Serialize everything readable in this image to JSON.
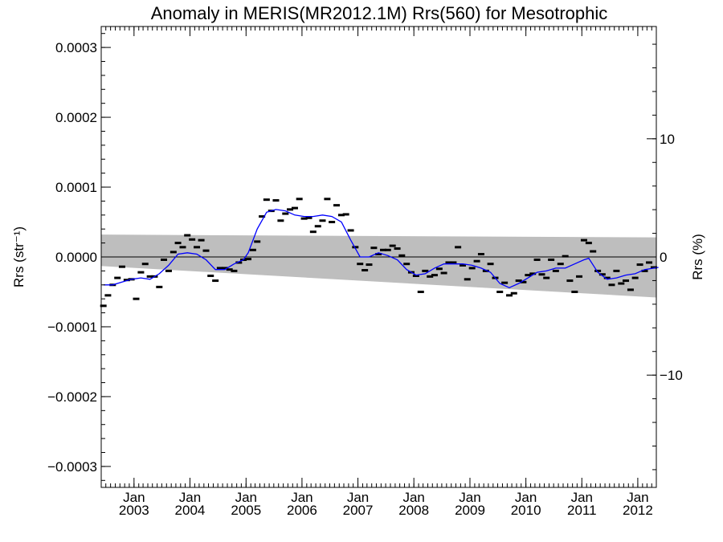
{
  "chart_data": {
    "type": "scatter",
    "title": "Anomaly in MERIS(MR2012.1M) Rrs(560) for Mesotrophic",
    "ylabel_left": "Rrs (str⁻¹)",
    "ylabel_right": "Rrs (%)",
    "x_range": [
      "2002-06-01",
      "2012-05-01"
    ],
    "y_range": [
      -0.00033,
      0.00033
    ],
    "y_right_range": [
      -19.5,
      19.5
    ],
    "x_ticks": [
      {
        "date": "2003-01-01",
        "month": "Jan",
        "year": "2003"
      },
      {
        "date": "2004-01-01",
        "month": "Jan",
        "year": "2004"
      },
      {
        "date": "2005-01-01",
        "month": "Jan",
        "year": "2005"
      },
      {
        "date": "2006-01-01",
        "month": "Jan",
        "year": "2006"
      },
      {
        "date": "2007-01-01",
        "month": "Jan",
        "year": "2007"
      },
      {
        "date": "2008-01-01",
        "month": "Jan",
        "year": "2008"
      },
      {
        "date": "2009-01-01",
        "month": "Jan",
        "year": "2009"
      },
      {
        "date": "2010-01-01",
        "month": "Jan",
        "year": "2010"
      },
      {
        "date": "2011-01-01",
        "month": "Jan",
        "year": "2011"
      },
      {
        "date": "2012-01-01",
        "month": "Jan",
        "year": "2012"
      }
    ],
    "y_ticks_left": [
      {
        "value": 0.0003,
        "label": "0.0003"
      },
      {
        "value": 0.0002,
        "label": "0.0002"
      },
      {
        "value": 0.0001,
        "label": "0.0001"
      },
      {
        "value": 0.0,
        "label": "0.0000"
      },
      {
        "value": -0.0001,
        "label": "−0.0001"
      },
      {
        "value": -0.0002,
        "label": "−0.0002"
      },
      {
        "value": -0.0003,
        "label": "−0.0003"
      }
    ],
    "y_ticks_right": [
      {
        "value": 10,
        "label": "10"
      },
      {
        "value": 0,
        "label": "0"
      },
      {
        "value": -10,
        "label": "−10"
      }
    ],
    "zero_line": 0.0,
    "uncertainty_band": {
      "color": "#bebebe",
      "upper": [
        [
          "2002-06-01",
          3.2e-05
        ],
        [
          "2012-05-01",
          2.8e-05
        ]
      ],
      "lower": [
        [
          "2002-06-01",
          -1.3e-05
        ],
        [
          "2012-05-01",
          -5.8e-05
        ]
      ]
    },
    "monthly_anomalies": {
      "color": "#000000",
      "points": [
        [
          "2002-06",
          -7e-05
        ],
        [
          "2002-07",
          -5.5e-05
        ],
        [
          "2002-08",
          -4e-05
        ],
        [
          "2002-09",
          -3e-05
        ],
        [
          "2002-10",
          -1.4e-05
        ],
        [
          "2002-11",
          -3.3e-05
        ],
        [
          "2002-12",
          -3.2e-05
        ],
        [
          "2003-01",
          -6e-05
        ],
        [
          "2003-02",
          -2.2e-05
        ],
        [
          "2003-03",
          -1e-05
        ],
        [
          "2003-04",
          -2.8e-05
        ],
        [
          "2003-05",
          -2.8e-05
        ],
        [
          "2003-06",
          -4.3e-05
        ],
        [
          "2003-07",
          -4e-06
        ],
        [
          "2003-08",
          -2e-05
        ],
        [
          "2003-09",
          7e-06
        ],
        [
          "2003-10",
          2e-05
        ],
        [
          "2003-11",
          1.4e-05
        ],
        [
          "2003-12",
          3.1e-05
        ],
        [
          "2004-01",
          2.5e-05
        ],
        [
          "2004-02",
          1.4e-05
        ],
        [
          "2004-03",
          2.4e-05
        ],
        [
          "2004-04",
          9e-06
        ],
        [
          "2004-05",
          -2.7e-05
        ],
        [
          "2004-06",
          -3.4e-05
        ],
        [
          "2004-07",
          -1.6e-05
        ],
        [
          "2004-08",
          -1.6e-05
        ],
        [
          "2004-09",
          -1.8e-05
        ],
        [
          "2004-10",
          -2e-05
        ],
        [
          "2004-11",
          -8e-06
        ],
        [
          "2004-12",
          -4e-06
        ],
        [
          "2005-01",
          -3e-06
        ],
        [
          "2005-02",
          1e-05
        ],
        [
          "2005-03",
          2.2e-05
        ],
        [
          "2005-04",
          5.8e-05
        ],
        [
          "2005-05",
          8.2e-05
        ],
        [
          "2005-06",
          6.6e-05
        ],
        [
          "2005-07",
          8.1e-05
        ],
        [
          "2005-08",
          5.2e-05
        ],
        [
          "2005-09",
          6.2e-05
        ],
        [
          "2005-10",
          6.8e-05
        ],
        [
          "2005-11",
          7e-05
        ],
        [
          "2005-12",
          8.3e-05
        ],
        [
          "2006-01",
          5.5e-05
        ],
        [
          "2006-02",
          5.6e-05
        ],
        [
          "2006-03",
          3.6e-05
        ],
        [
          "2006-04",
          4.4e-05
        ],
        [
          "2006-05",
          5.2e-05
        ],
        [
          "2006-06",
          8.3e-05
        ],
        [
          "2006-07",
          5e-05
        ],
        [
          "2006-08",
          7.4e-05
        ],
        [
          "2006-09",
          6e-05
        ],
        [
          "2006-10",
          6.1e-05
        ],
        [
          "2006-11",
          3.8e-05
        ],
        [
          "2006-12",
          1.4e-05
        ],
        [
          "2007-01",
          -1e-05
        ],
        [
          "2007-02",
          -1.9e-05
        ],
        [
          "2007-03",
          -1.1e-05
        ],
        [
          "2007-04",
          1.3e-05
        ],
        [
          "2007-05",
          4e-06
        ],
        [
          "2007-06",
          1e-05
        ],
        [
          "2007-07",
          1e-05
        ],
        [
          "2007-08",
          1.6e-05
        ],
        [
          "2007-09",
          1.2e-05
        ],
        [
          "2007-10",
          2e-06
        ],
        [
          "2007-11",
          -1e-05
        ],
        [
          "2007-12",
          -2.2e-05
        ],
        [
          "2008-01",
          -2.7e-05
        ],
        [
          "2008-02",
          -5e-05
        ],
        [
          "2008-03",
          -2e-05
        ],
        [
          "2008-04",
          -2.8e-05
        ],
        [
          "2008-05",
          -2.6e-05
        ],
        [
          "2008-06",
          -1.7e-05
        ],
        [
          "2008-07",
          -2.3e-05
        ],
        [
          "2008-08",
          -8e-06
        ],
        [
          "2008-09",
          -8e-06
        ],
        [
          "2008-10",
          1.4e-05
        ],
        [
          "2008-11",
          -1.2e-05
        ],
        [
          "2008-12",
          -3.2e-05
        ],
        [
          "2009-01",
          -1.6e-05
        ],
        [
          "2009-02",
          -6e-06
        ],
        [
          "2009-03",
          4e-06
        ],
        [
          "2009-04",
          -2e-05
        ],
        [
          "2009-05",
          -1e-05
        ],
        [
          "2009-06",
          -3e-05
        ],
        [
          "2009-07",
          -5e-05
        ],
        [
          "2009-08",
          -3.7e-05
        ],
        [
          "2009-09",
          -5.5e-05
        ],
        [
          "2009-10",
          -5.2e-05
        ],
        [
          "2009-11",
          -3.4e-05
        ],
        [
          "2009-12",
          -3.6e-05
        ],
        [
          "2010-01",
          -2.6e-05
        ],
        [
          "2010-02",
          -2.4e-05
        ],
        [
          "2010-03",
          -4e-06
        ],
        [
          "2010-04",
          -2.5e-05
        ],
        [
          "2010-05",
          -3e-05
        ],
        [
          "2010-06",
          -4e-06
        ],
        [
          "2010-07",
          -2e-05
        ],
        [
          "2010-08",
          -1e-05
        ],
        [
          "2010-09",
          1e-06
        ],
        [
          "2010-10",
          -3.4e-05
        ],
        [
          "2010-11",
          -5e-05
        ],
        [
          "2010-12",
          -2.8e-05
        ],
        [
          "2011-01",
          2.4e-05
        ],
        [
          "2011-02",
          2e-05
        ],
        [
          "2011-03",
          8e-06
        ],
        [
          "2011-04",
          -2e-05
        ],
        [
          "2011-05",
          -2.5e-05
        ],
        [
          "2011-06",
          -3e-05
        ],
        [
          "2011-07",
          -4e-05
        ],
        [
          "2011-08",
          -2e-05
        ],
        [
          "2011-09",
          -3.8e-05
        ],
        [
          "2011-10",
          -3.4e-05
        ],
        [
          "2011-11",
          -4.7e-05
        ],
        [
          "2011-12",
          -3e-05
        ],
        [
          "2012-01",
          -1.1e-05
        ],
        [
          "2012-02",
          -2e-05
        ],
        [
          "2012-03",
          -8e-06
        ],
        [
          "2012-04",
          -1.5e-05
        ]
      ]
    },
    "running_mean": {
      "color": "#0000ff",
      "points": [
        [
          "2002-06",
          -4e-05
        ],
        [
          "2002-08",
          -4e-05
        ],
        [
          "2002-10",
          -3.6e-05
        ],
        [
          "2002-12",
          -3.2e-05
        ],
        [
          "2003-02",
          -3e-05
        ],
        [
          "2003-04",
          -3.2e-05
        ],
        [
          "2003-06",
          -2.4e-05
        ],
        [
          "2003-08",
          -1.2e-05
        ],
        [
          "2003-10",
          4e-06
        ],
        [
          "2003-12",
          6e-06
        ],
        [
          "2004-02",
          4e-06
        ],
        [
          "2004-04",
          -4e-06
        ],
        [
          "2004-06",
          -1.8e-05
        ],
        [
          "2004-08",
          -1.8e-05
        ],
        [
          "2004-10",
          -1e-05
        ],
        [
          "2004-12",
          -4e-06
        ],
        [
          "2005-01",
          6e-06
        ],
        [
          "2005-03",
          4e-05
        ],
        [
          "2005-05",
          6.4e-05
        ],
        [
          "2005-07",
          6.8e-05
        ],
        [
          "2005-09",
          6.6e-05
        ],
        [
          "2005-11",
          6e-05
        ],
        [
          "2006-01",
          5.8e-05
        ],
        [
          "2006-03",
          5.8e-05
        ],
        [
          "2006-05",
          6e-05
        ],
        [
          "2006-07",
          5.8e-05
        ],
        [
          "2006-09",
          5e-05
        ],
        [
          "2006-11",
          2.4e-05
        ],
        [
          "2007-01",
          0.0
        ],
        [
          "2007-03",
          0.0
        ],
        [
          "2007-05",
          6e-06
        ],
        [
          "2007-07",
          2e-06
        ],
        [
          "2007-09",
          -4e-06
        ],
        [
          "2007-11",
          -1.8e-05
        ],
        [
          "2008-01",
          -2.6e-05
        ],
        [
          "2008-03",
          -2.4e-05
        ],
        [
          "2008-05",
          -1.6e-05
        ],
        [
          "2008-07",
          -1e-05
        ],
        [
          "2008-09",
          -1e-05
        ],
        [
          "2008-11",
          -1e-05
        ],
        [
          "2009-01",
          -1.2e-05
        ],
        [
          "2009-03",
          -1.6e-05
        ],
        [
          "2009-05",
          -2.2e-05
        ],
        [
          "2009-07",
          -3.8e-05
        ],
        [
          "2009-09",
          -4.4e-05
        ],
        [
          "2009-11",
          -3.8e-05
        ],
        [
          "2010-01",
          -3e-05
        ],
        [
          "2010-03",
          -2.2e-05
        ],
        [
          "2010-05",
          -2e-05
        ],
        [
          "2010-07",
          -1.6e-05
        ],
        [
          "2010-09",
          -1.6e-05
        ],
        [
          "2010-11",
          -1e-05
        ],
        [
          "2011-01",
          -4e-06
        ],
        [
          "2011-02",
          -2e-06
        ],
        [
          "2011-04",
          -2.2e-05
        ],
        [
          "2011-06",
          -3.2e-05
        ],
        [
          "2011-08",
          -3e-05
        ],
        [
          "2011-10",
          -2.6e-05
        ],
        [
          "2011-12",
          -2.4e-05
        ],
        [
          "2012-02",
          -1.8e-05
        ],
        [
          "2012-05",
          -1.5e-05
        ]
      ]
    }
  }
}
